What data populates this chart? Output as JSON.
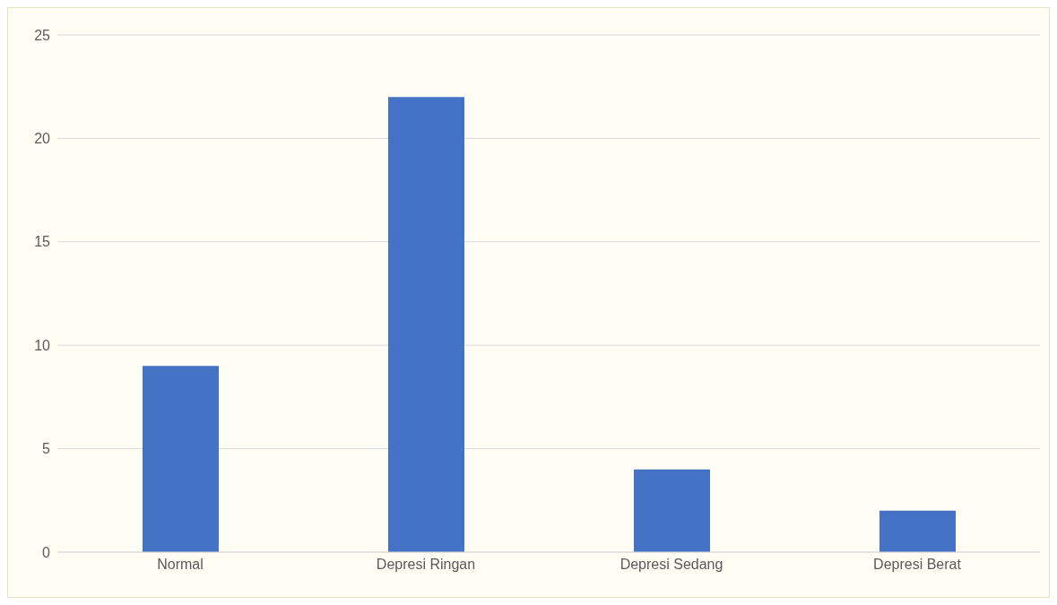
{
  "chart_data": {
    "type": "bar",
    "categories": [
      "Normal",
      "Depresi Ringan",
      "Depresi Sedang",
      "Depresi Berat"
    ],
    "values": [
      9,
      22,
      4,
      2
    ],
    "color": "#4472c4",
    "ylim": [
      0,
      25
    ],
    "yticks": [
      0,
      5,
      10,
      15,
      20,
      25
    ],
    "grid": "y"
  }
}
